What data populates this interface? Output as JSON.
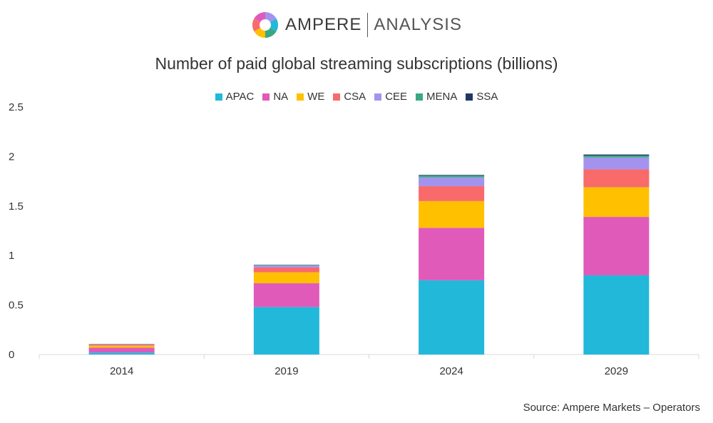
{
  "header": {
    "brand": "AMPERE",
    "brand_sub": "ANALYSIS"
  },
  "chart_data": {
    "type": "bar",
    "stacked": true,
    "title": "Number of paid global streaming subscriptions (billions)",
    "categories": [
      "2014",
      "2019",
      "2024",
      "2029"
    ],
    "series": [
      {
        "name": "APAC",
        "color": "#22b8da",
        "values": [
          0.02,
          0.48,
          0.75,
          0.8
        ]
      },
      {
        "name": "NA",
        "color": "#e05aba",
        "values": [
          0.05,
          0.24,
          0.53,
          0.59
        ]
      },
      {
        "name": "WE",
        "color": "#ffc000",
        "values": [
          0.02,
          0.11,
          0.27,
          0.3
        ]
      },
      {
        "name": "CSA",
        "color": "#f96a6a",
        "values": [
          0.01,
          0.05,
          0.15,
          0.18
        ]
      },
      {
        "name": "CEE",
        "color": "#a393ef",
        "values": [
          0.005,
          0.02,
          0.09,
          0.12
        ]
      },
      {
        "name": "MENA",
        "color": "#3aa882",
        "values": [
          0.002,
          0.005,
          0.02,
          0.02
        ]
      },
      {
        "name": "SSA",
        "color": "#1f3864",
        "values": [
          0.001,
          0.002,
          0.005,
          0.01
        ]
      }
    ],
    "yticks": [
      "0",
      "0.5",
      "1",
      "1.5",
      "2",
      "2.5"
    ],
    "ylim": [
      0,
      2.5
    ],
    "xlabel": "",
    "ylabel": "",
    "legend_position": "top-center",
    "grid": false
  },
  "footer": {
    "source": "Source: Ampere Markets – Operators"
  }
}
